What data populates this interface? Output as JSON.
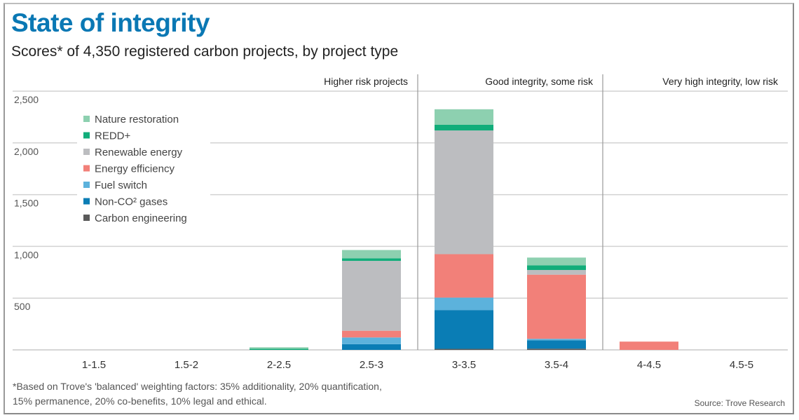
{
  "header": {
    "title": "State of integrity",
    "subtitle": "Scores* of 4,350 registered carbon projects, by project type"
  },
  "footer": {
    "footnote_line1": "*Based on Trove's 'balanced' weighting factors: 35% additionality, 20% quantification,",
    "footnote_line2": "15% permanence, 20% co-benefits, 10% legal and ethical.",
    "source": "Source: Trove Research"
  },
  "chart_data": {
    "type": "bar",
    "stacked": true,
    "title": "State of integrity",
    "subtitle": "Scores* of 4,350 registered carbon projects, by project type",
    "xlabel": "",
    "ylabel": "",
    "ylim": [
      0,
      2500
    ],
    "yticks": [
      500,
      1000,
      1500,
      2000,
      2500
    ],
    "ytick_labels": [
      "500",
      "1,000",
      "1,500",
      "2,000",
      "2,500"
    ],
    "grid": true,
    "legend_position": "top-left",
    "categories": [
      "1-1.5",
      "1.5-2",
      "2-2.5",
      "2.5-3",
      "3-3.5",
      "3.5-4",
      "4-4.5",
      "4.5-5"
    ],
    "zones": [
      {
        "label": "Higher risk projects",
        "from_category": 0,
        "to_category": 3
      },
      {
        "label": "Good integrity, some risk",
        "from_category": 4,
        "to_category": 5
      },
      {
        "label": "Very high integrity, low risk",
        "from_category": 6,
        "to_category": 7
      }
    ],
    "series": [
      {
        "name": "Carbon engineering",
        "color": "#5a5a5a",
        "values": [
          0,
          0,
          0,
          0,
          10,
          12,
          0,
          0
        ]
      },
      {
        "name": "Non-CO² gases",
        "color": "#0a7db5",
        "values": [
          0,
          0,
          0,
          55,
          375,
          80,
          0,
          0
        ]
      },
      {
        "name": "Fuel switch",
        "color": "#5cb2dc",
        "values": [
          0,
          0,
          0,
          65,
          120,
          15,
          0,
          0
        ]
      },
      {
        "name": "Energy efficiency",
        "color": "#f28079",
        "values": [
          0,
          0,
          0,
          65,
          420,
          620,
          80,
          0
        ]
      },
      {
        "name": "Renewable energy",
        "color": "#bcbdc0",
        "values": [
          0,
          0,
          0,
          675,
          1195,
          45,
          0,
          0
        ]
      },
      {
        "name": "REDD+",
        "color": "#11ad7a",
        "values": [
          0,
          0,
          10,
          25,
          55,
          45,
          0,
          0
        ]
      },
      {
        "name": "Nature restoration",
        "color": "#8dd0b0",
        "values": [
          0,
          0,
          15,
          80,
          150,
          75,
          0,
          0
        ]
      }
    ],
    "legend_order": [
      "Nature restoration",
      "REDD+",
      "Renewable energy",
      "Energy efficiency",
      "Fuel switch",
      "Non-CO² gases",
      "Carbon engineering"
    ]
  }
}
